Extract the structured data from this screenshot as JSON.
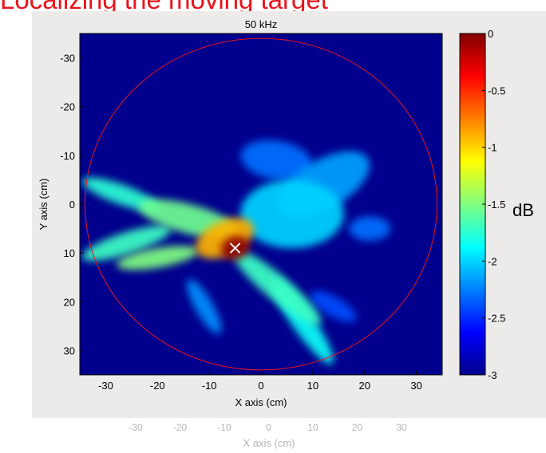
{
  "slide_title": "Localizing the moving target",
  "unit_label": "dB",
  "chart_data": {
    "type": "heatmap",
    "title": "50 kHz",
    "xlabel": "X axis (cm)",
    "ylabel": "Y axis (cm)",
    "xlim": [
      -35,
      35
    ],
    "ylim": [
      -35,
      35
    ],
    "y_axis_reversed": true,
    "x_ticks": [
      -30,
      -20,
      -10,
      0,
      10,
      20,
      30
    ],
    "y_ticks": [
      -30,
      -20,
      -10,
      0,
      10,
      20,
      30
    ],
    "colorbar": {
      "range": [
        -3,
        0
      ],
      "ticks": [
        0,
        -0.5,
        -1,
        -1.5,
        -2,
        -2.5,
        -3
      ],
      "tick_labels": [
        "0",
        "-0.5",
        "-1",
        "-1.5",
        "-2",
        "-2.5",
        "-3"
      ],
      "unit": "dB",
      "colormap": "jet"
    },
    "background_color": "#00008c",
    "circle": {
      "center": [
        0,
        0
      ],
      "radius": 34,
      "color": "#e8141a"
    },
    "target_marker": {
      "x": -5,
      "y": 9,
      "symbol": "x",
      "color": "#ffffff"
    },
    "blobs": [
      {
        "x": -5,
        "y": 9,
        "rx": 2.8,
        "ry": 2.4,
        "rot": -20,
        "level": -0.05
      },
      {
        "x": -7,
        "y": 7,
        "rx": 6,
        "ry": 3.5,
        "rot": -25,
        "level": -0.9
      },
      {
        "x": -14,
        "y": 3,
        "rx": 10,
        "ry": 3,
        "rot": 15,
        "level": -1.55
      },
      {
        "x": -26,
        "y": 8,
        "rx": 9,
        "ry": 2.2,
        "rot": -18,
        "level": -1.7
      },
      {
        "x": -27,
        "y": -2,
        "rx": 8,
        "ry": 2,
        "rot": 20,
        "level": -1.75
      },
      {
        "x": -20,
        "y": 11,
        "rx": 8,
        "ry": 2,
        "rot": -10,
        "level": -1.5
      },
      {
        "x": 3,
        "y": 17,
        "rx": 11,
        "ry": 2.5,
        "rot": 40,
        "level": -1.7
      },
      {
        "x": 8,
        "y": 24,
        "rx": 10,
        "ry": 2.2,
        "rot": 55,
        "level": -1.85
      },
      {
        "x": 6,
        "y": 2,
        "rx": 10,
        "ry": 7,
        "rot": 0,
        "level": -2.0
      },
      {
        "x": 12,
        "y": -4,
        "rx": 10,
        "ry": 5,
        "rot": -30,
        "level": -2.15
      },
      {
        "x": 3,
        "y": -9,
        "rx": 7,
        "ry": 4,
        "rot": 10,
        "level": -2.3
      },
      {
        "x": -11,
        "y": 21,
        "rx": 6,
        "ry": 1.8,
        "rot": 60,
        "level": -2.2
      },
      {
        "x": 21,
        "y": 5,
        "rx": 4,
        "ry": 2.5,
        "rot": 0,
        "level": -2.3
      },
      {
        "x": 14,
        "y": 21,
        "rx": 5,
        "ry": 2,
        "rot": 30,
        "level": -2.4
      }
    ]
  }
}
